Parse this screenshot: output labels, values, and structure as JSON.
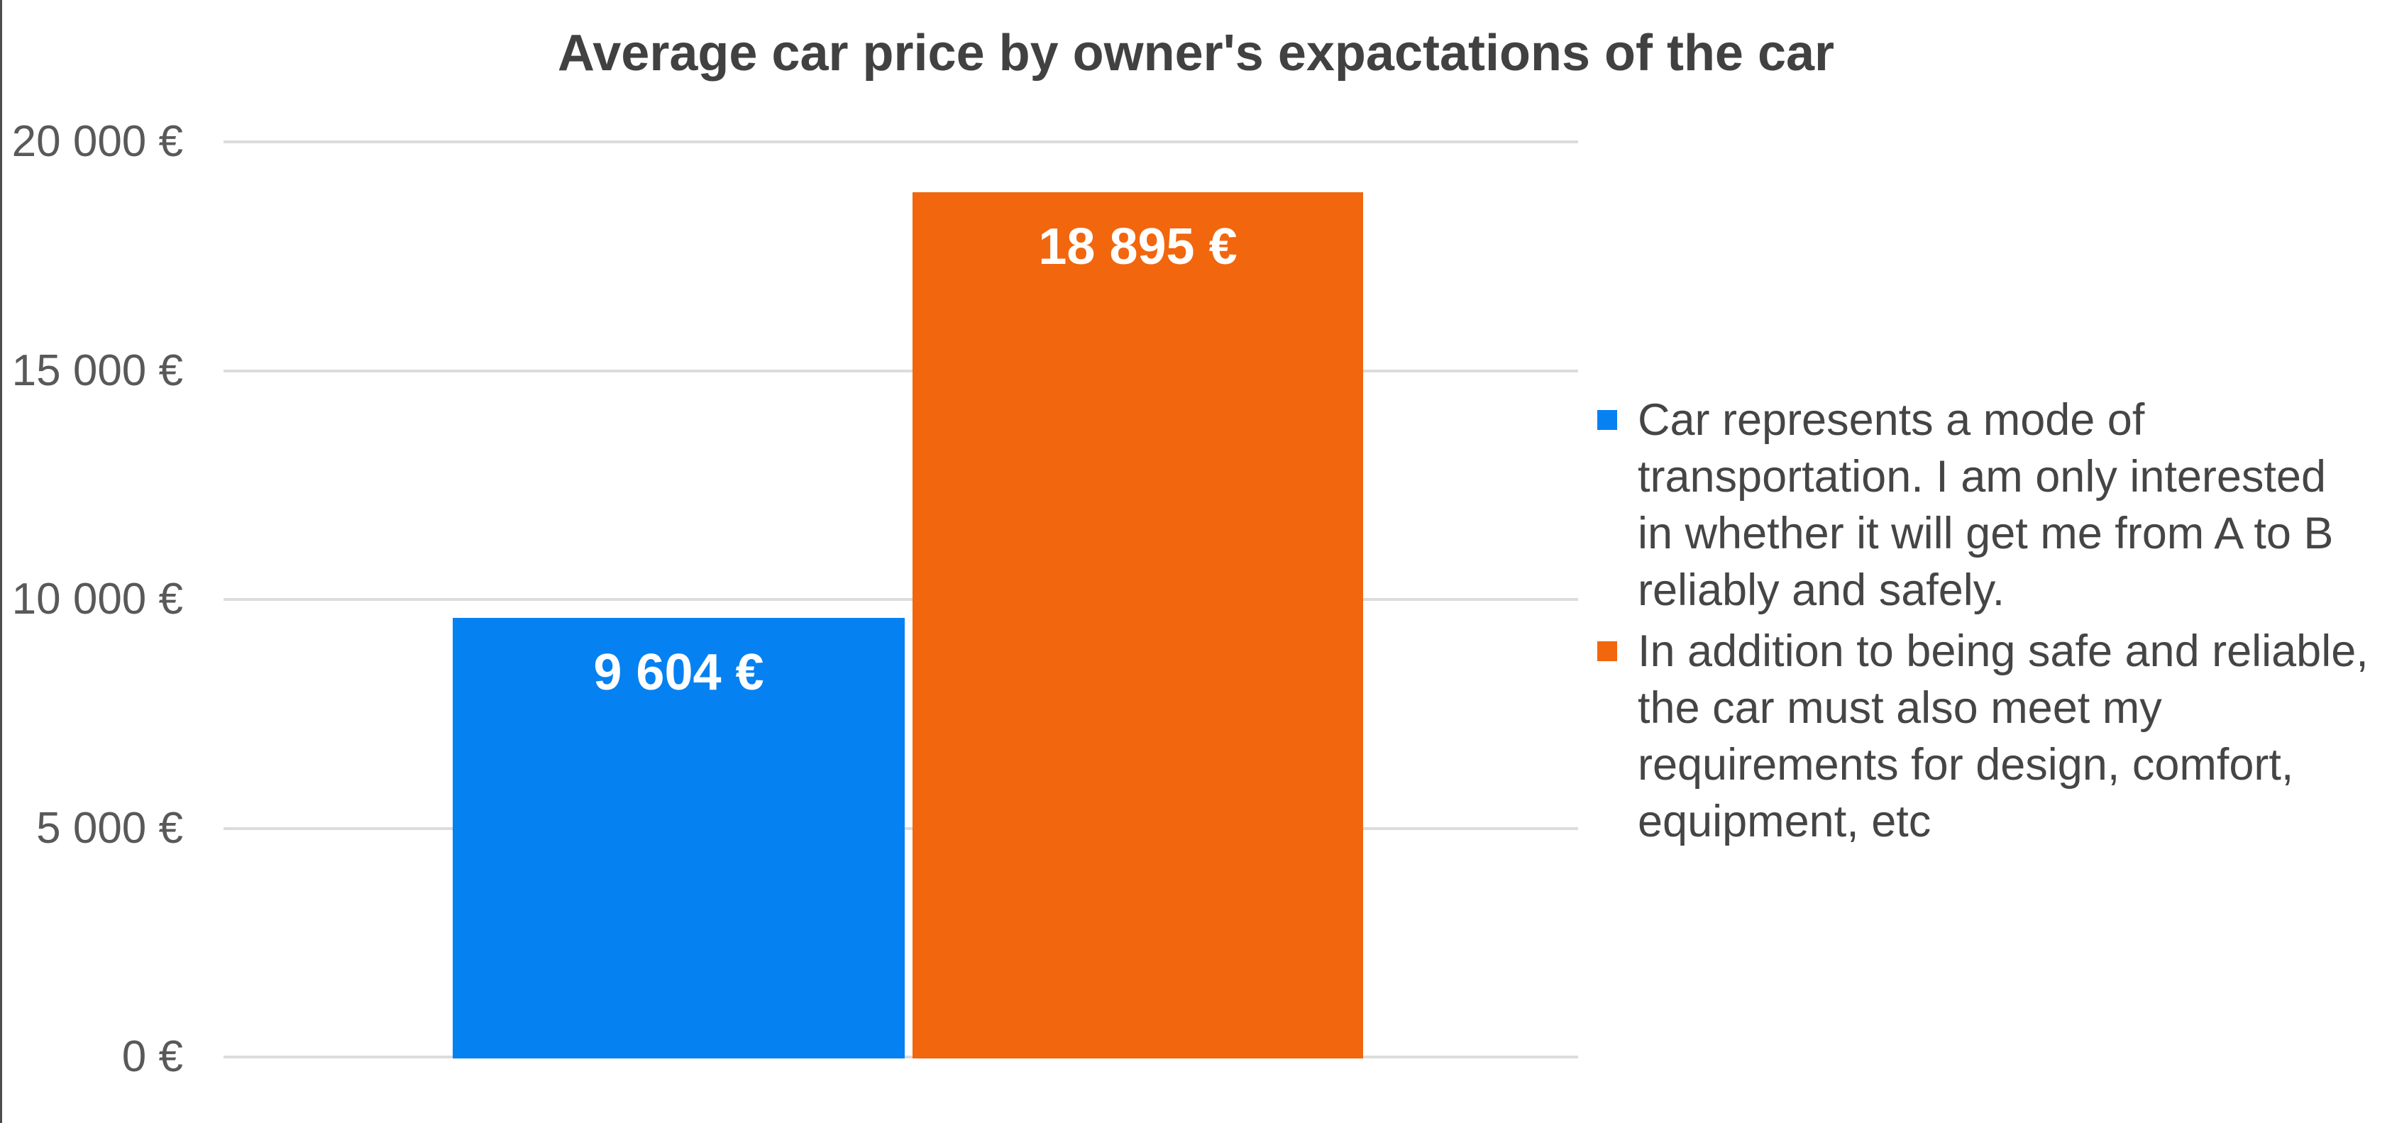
{
  "title": "Average car price by owner's expactations of the car",
  "chart_data": {
    "type": "bar",
    "title": "Average car price by owner's expactations of the car",
    "categories": [
      "Car represents a mode of transportation. I am only interested in whether it will get me from A to B reliably and safely.",
      "In addition to being safe and reliable, the car must also meet my requirements for design, comfort, equipment, etc"
    ],
    "values": [
      9604,
      18895
    ],
    "value_labels": [
      "9 604 €",
      "18 895 €"
    ],
    "colors": [
      "#0681F1",
      "#F2660D"
    ],
    "xlabel": "",
    "ylabel": "",
    "ylim": [
      0,
      20000
    ],
    "y_ticks": [
      {
        "value": 20000,
        "label": "20 000 €"
      },
      {
        "value": 15000,
        "label": "15 000 €"
      },
      {
        "value": 10000,
        "label": "10 000 €"
      },
      {
        "value": 5000,
        "label": "5 000 €"
      },
      {
        "value": 0,
        "label": "0 €"
      }
    ],
    "grid": true,
    "gridline_color": "#dcdcdc",
    "legend_position": "right"
  },
  "legend": {
    "items": [
      {
        "label": "Car represents a mode of transportation. I am only interested in whether it will get me from A to B reliably and safely.",
        "color": "#0681F1"
      },
      {
        "label": "In addition to being safe and reliable, the car must also meet my requirements for design, comfort, equipment, etc",
        "color": "#F2660D"
      }
    ]
  }
}
